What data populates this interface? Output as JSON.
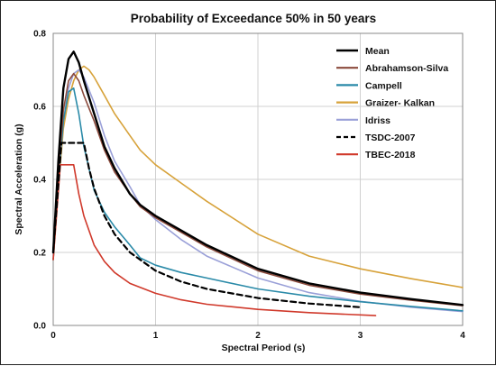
{
  "chart_data": {
    "type": "line",
    "title": "Probability of Exceedance 50% in 50 years",
    "xlabel": "Spectral Period (s)",
    "ylabel": "Spectral Acceleration (g)",
    "xlim": [
      0,
      4
    ],
    "ylim": [
      0,
      0.8
    ],
    "xticks": [
      0,
      1,
      2,
      3,
      4
    ],
    "yticks": [
      0.0,
      0.2,
      0.4,
      0.6,
      0.8
    ],
    "xtick_labels": [
      "0",
      "1",
      "2",
      "3",
      "4"
    ],
    "ytick_labels": [
      "0.0",
      "0.2",
      "0.4",
      "0.6",
      "0.8"
    ],
    "grid": true,
    "legend_position": "top-right",
    "series": [
      {
        "name": "Mean",
        "color": "#000000",
        "dash": "solid",
        "x": [
          0.0,
          0.05,
          0.1,
          0.15,
          0.2,
          0.25,
          0.3,
          0.4,
          0.5,
          0.6,
          0.75,
          0.85,
          1.0,
          1.25,
          1.5,
          2.0,
          2.5,
          3.0,
          3.5,
          4.0
        ],
        "y": [
          0.2,
          0.45,
          0.65,
          0.73,
          0.75,
          0.72,
          0.67,
          0.58,
          0.49,
          0.43,
          0.36,
          0.33,
          0.3,
          0.26,
          0.22,
          0.155,
          0.115,
          0.09,
          0.072,
          0.056
        ]
      },
      {
        "name": "Abrahamson-Silva",
        "color": "#8b4a3c",
        "dash": "solid",
        "x": [
          0.0,
          0.05,
          0.1,
          0.15,
          0.2,
          0.25,
          0.3,
          0.4,
          0.5,
          0.6,
          0.75,
          0.85,
          1.0,
          1.25,
          1.5,
          2.0,
          2.5,
          3.0,
          3.5,
          4.0
        ],
        "y": [
          0.2,
          0.42,
          0.59,
          0.67,
          0.69,
          0.67,
          0.63,
          0.56,
          0.48,
          0.42,
          0.36,
          0.325,
          0.295,
          0.255,
          0.215,
          0.15,
          0.11,
          0.086,
          0.069,
          0.054
        ]
      },
      {
        "name": "Campell",
        "color": "#2a8aa8",
        "dash": "solid",
        "x": [
          0.0,
          0.05,
          0.1,
          0.15,
          0.2,
          0.25,
          0.3,
          0.4,
          0.5,
          0.6,
          0.75,
          0.85,
          1.0,
          1.25,
          1.5,
          2.0,
          2.5,
          3.0,
          3.5,
          4.0
        ],
        "y": [
          0.18,
          0.4,
          0.56,
          0.64,
          0.65,
          0.58,
          0.49,
          0.37,
          0.31,
          0.27,
          0.22,
          0.185,
          0.165,
          0.145,
          0.13,
          0.1,
          0.08,
          0.065,
          0.052,
          0.04
        ]
      },
      {
        "name": "Graizer- Kalkan",
        "color": "#d7a23a",
        "dash": "solid",
        "x": [
          0.0,
          0.05,
          0.1,
          0.15,
          0.2,
          0.25,
          0.3,
          0.35,
          0.4,
          0.5,
          0.6,
          0.75,
          0.85,
          1.0,
          1.25,
          1.5,
          2.0,
          2.5,
          3.0,
          3.5,
          4.0
        ],
        "y": [
          0.18,
          0.38,
          0.54,
          0.62,
          0.67,
          0.7,
          0.71,
          0.7,
          0.68,
          0.63,
          0.58,
          0.52,
          0.48,
          0.44,
          0.39,
          0.34,
          0.25,
          0.19,
          0.155,
          0.128,
          0.104
        ]
      },
      {
        "name": "Idriss",
        "color": "#9aa0d8",
        "dash": "solid",
        "x": [
          0.0,
          0.05,
          0.1,
          0.15,
          0.2,
          0.25,
          0.3,
          0.4,
          0.5,
          0.6,
          0.75,
          0.85,
          1.0,
          1.25,
          1.5,
          2.0,
          2.5,
          3.0,
          3.5,
          4.0
        ],
        "y": [
          0.19,
          0.4,
          0.56,
          0.65,
          0.69,
          0.7,
          0.68,
          0.61,
          0.52,
          0.45,
          0.38,
          0.33,
          0.29,
          0.235,
          0.19,
          0.13,
          0.09,
          0.066,
          0.05,
          0.038
        ]
      },
      {
        "name": "TSDC-2007",
        "color": "#000000",
        "dash": "dashed",
        "x": [
          0.0,
          0.08,
          0.3,
          0.35,
          0.4,
          0.5,
          0.6,
          0.75,
          1.0,
          1.25,
          1.5,
          2.0,
          2.5,
          3.0
        ],
        "y": [
          0.2,
          0.5,
          0.5,
          0.43,
          0.375,
          0.3,
          0.25,
          0.2,
          0.15,
          0.12,
          0.1,
          0.075,
          0.06,
          0.05
        ]
      },
      {
        "name": "TBEC-2018",
        "color": "#d0392b",
        "dash": "solid",
        "x": [
          0.0,
          0.07,
          0.2,
          0.25,
          0.3,
          0.4,
          0.5,
          0.6,
          0.75,
          1.0,
          1.25,
          1.5,
          2.0,
          2.5,
          3.15
        ],
        "y": [
          0.18,
          0.44,
          0.44,
          0.36,
          0.3,
          0.22,
          0.175,
          0.145,
          0.115,
          0.088,
          0.07,
          0.058,
          0.044,
          0.035,
          0.027
        ]
      }
    ]
  }
}
